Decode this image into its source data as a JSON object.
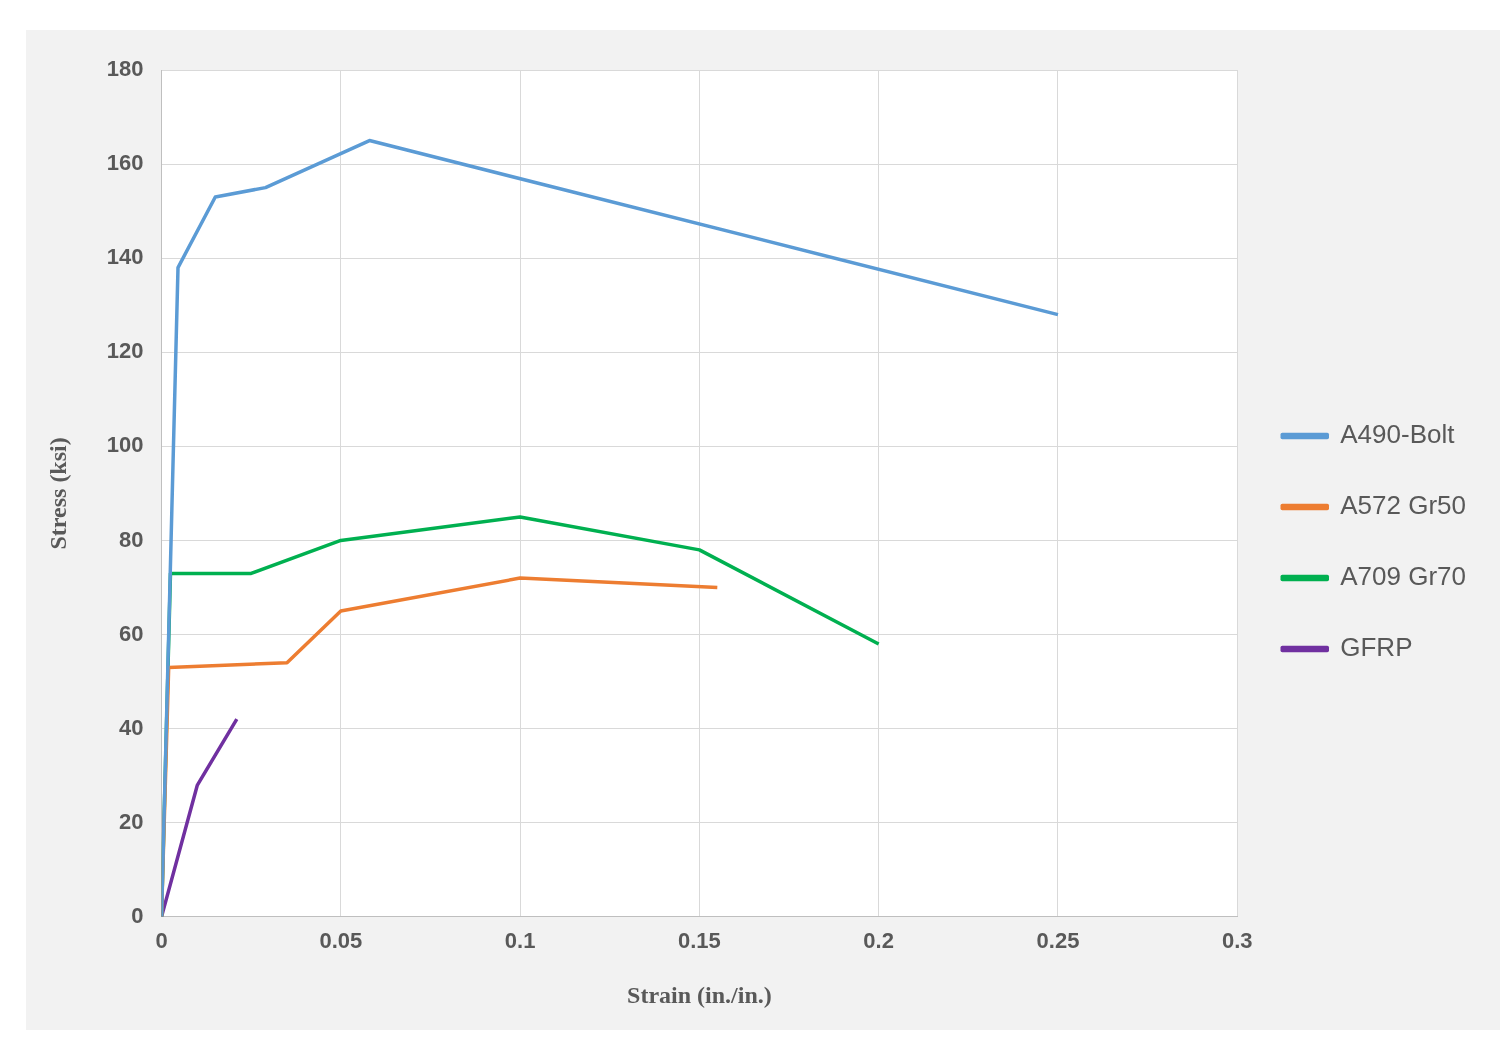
{
  "chart_data": {
    "type": "line",
    "xlabel": "Strain (in./in.)",
    "ylabel": "Stress (ksi)",
    "xlim": [
      0,
      0.3
    ],
    "xticks": [
      0,
      0.05,
      0.1,
      0.15,
      0.2,
      0.25,
      0.3
    ],
    "ylim": [
      0,
      180
    ],
    "yticks": [
      0,
      20,
      40,
      60,
      80,
      100,
      120,
      140,
      160,
      180
    ],
    "grid": true,
    "legend": "right",
    "marker": "none",
    "line_style": "solid",
    "series": [
      {
        "name": "A490-Bolt",
        "color": "#5b9bd5",
        "x": [
          0,
          0.0046,
          0.015,
          0.029,
          0.058,
          0.25
        ],
        "values": [
          0,
          138,
          153,
          155,
          165,
          128
        ]
      },
      {
        "name": "A572 Gr50",
        "color": "#ed7d31",
        "x": [
          0,
          0.002,
          0.035,
          0.05,
          0.1,
          0.155
        ],
        "values": [
          0,
          53,
          54,
          65,
          72,
          70
        ]
      },
      {
        "name": "A709 Gr70",
        "color": "#00b050",
        "x": [
          0,
          0.0025,
          0.025,
          0.05,
          0.1,
          0.15,
          0.2
        ],
        "values": [
          0,
          73,
          73,
          80,
          85,
          78,
          58
        ]
      },
      {
        "name": "GFRP",
        "color": "#7030a0",
        "x": [
          0,
          0.01,
          0.021
        ],
        "values": [
          0,
          28,
          42
        ]
      }
    ]
  }
}
